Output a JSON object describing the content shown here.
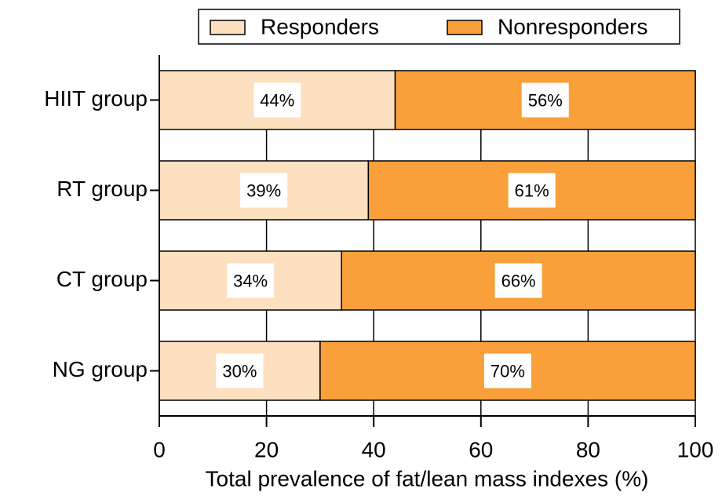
{
  "chart_data": {
    "type": "stacked-barh",
    "categories": [
      "HIIT group",
      "RT group",
      "CT group",
      "NG group"
    ],
    "series": [
      {
        "name": "Responders",
        "color": "#fde0c0",
        "values": [
          44,
          39,
          34,
          30
        ],
        "value_labels": [
          "44%",
          "39%",
          "34%",
          "30%"
        ]
      },
      {
        "name": "Nonresponders",
        "color": "#f9a03a",
        "values": [
          56,
          61,
          66,
          70
        ],
        "value_labels": [
          "56%",
          "61%",
          "66%",
          "70%"
        ]
      }
    ],
    "xlabel": "Total prevalence of fat/lean mass indexes (%)",
    "xlim": [
      0,
      100
    ],
    "xticks": [
      0,
      20,
      40,
      60,
      80,
      100
    ],
    "grid": true,
    "legend": "top"
  }
}
